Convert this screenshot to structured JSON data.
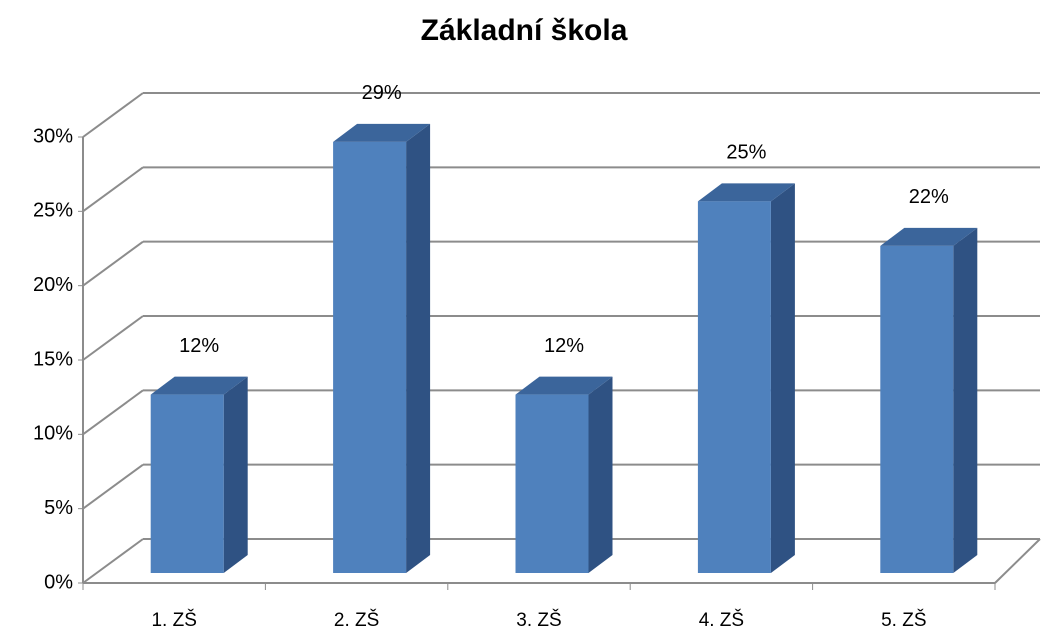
{
  "chart_data": {
    "type": "bar3d",
    "title": "Základní škola",
    "categories": [
      "1. ZŠ",
      "2. ZŠ",
      "3. ZŠ",
      "4. ZŠ",
      "5. ZŠ"
    ],
    "values": [
      12,
      29,
      12,
      25,
      22
    ],
    "value_labels": [
      "12%",
      "29%",
      "12%",
      "25%",
      "22%"
    ],
    "color": "#4f81bd",
    "ylim": [
      0,
      30
    ],
    "yticks": [
      {
        "value": 0,
        "label": "0%"
      },
      {
        "value": 5,
        "label": "5%"
      },
      {
        "value": 10,
        "label": "10%"
      },
      {
        "value": 15,
        "label": "15%"
      },
      {
        "value": 20,
        "label": "20%"
      },
      {
        "value": 25,
        "label": "25%"
      },
      {
        "value": 30,
        "label": "30%"
      }
    ],
    "grid": true
  }
}
